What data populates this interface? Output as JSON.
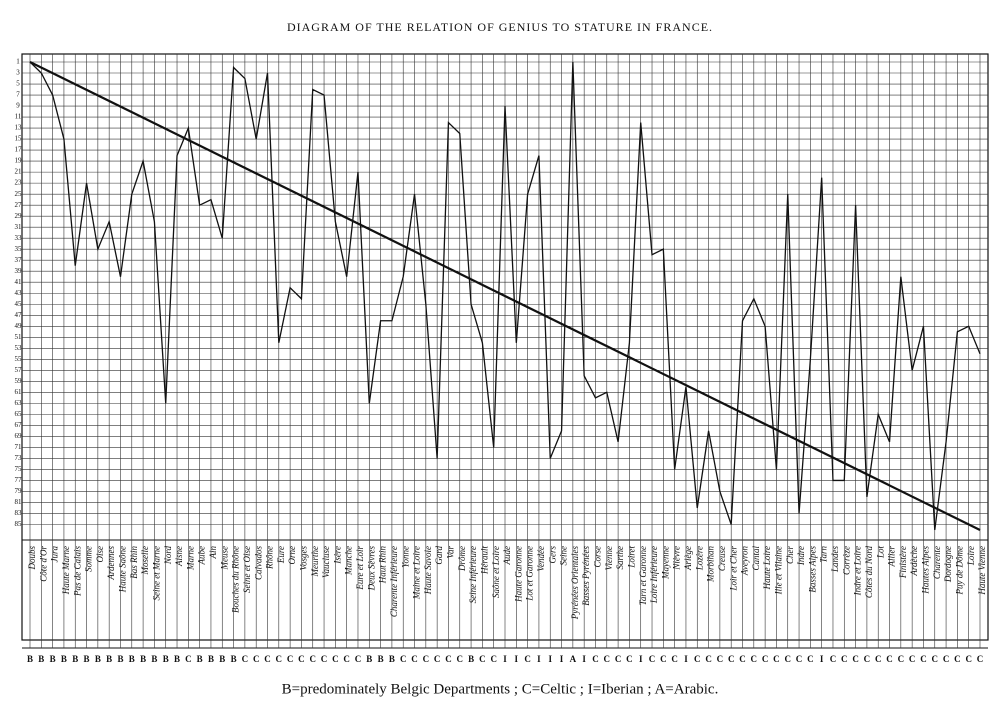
{
  "chart_data": {
    "type": "line",
    "title": "DIAGRAM OF THE RELATION OF GENIUS TO STATURE IN FRANCE.",
    "caption": "B=predominately Belgic Departments ; C=Celtic ; I=Iberian ; A=Arabic.",
    "y_inverted": true,
    "grid": true,
    "color": "#111111",
    "ylim": [
      1,
      86
    ],
    "yticks": [
      1,
      3,
      5,
      7,
      9,
      11,
      13,
      15,
      17,
      19,
      21,
      23,
      25,
      27,
      29,
      31,
      33,
      35,
      37,
      39,
      41,
      43,
      45,
      47,
      49,
      51,
      53,
      55,
      57,
      59,
      61,
      63,
      65,
      67,
      69,
      71,
      73,
      75,
      77,
      79,
      81,
      83,
      85
    ],
    "categories": [
      "Doubs",
      "Côte d'Or",
      "Jura",
      "Haute Marne",
      "Pas de Calais",
      "Somme",
      "Oise",
      "Ardennes",
      "Haute Saône",
      "Bas Rhin",
      "Moselle",
      "Seine et Marne",
      "Nord",
      "Aisne",
      "Marne",
      "Aube",
      "Ain",
      "Meuse",
      "Bouches du Rhône",
      "Seine et Oise",
      "Calvados",
      "Rhône",
      "Eure",
      "Orne",
      "Vosges",
      "Meurthe",
      "Vaucluse",
      "Isère",
      "Manche",
      "Eure et Loir",
      "Deux Sèvres",
      "Haut Rhin",
      "Charente Inférieure",
      "Yonne",
      "Maine et Loire",
      "Haute Savoie",
      "Gard",
      "Var",
      "Drôme",
      "Seine Inférieure",
      "Hérault",
      "Saône et Loire",
      "Aude",
      "Haute Garonne",
      "Lot et Garonne",
      "Vendée",
      "Gers",
      "Seine",
      "Pyrénées Orientales",
      "Basses Pyrénées",
      "Corse",
      "Vienne",
      "Sarthe",
      "Loiret",
      "Tarn et Garonne",
      "Loire Inférieure",
      "Mayenne",
      "Nièvre",
      "Ariège",
      "Lozère",
      "Morbihan",
      "Creuse",
      "Loir et Cher",
      "Aveyron",
      "Cantal",
      "Haute Loire",
      "Ille et Vilaine",
      "Cher",
      "Indre",
      "Basses Alpes",
      "Tarn",
      "Landes",
      "Corrèze",
      "Indre et Loire",
      "Côtes du Nord",
      "Lot",
      "Allier",
      "Finistère",
      "Ardèche",
      "Hautes Alpes",
      "Charente",
      "Dordogne",
      "Puy de Dôme",
      "Loire",
      "Haute Vienne"
    ],
    "groups": [
      "B",
      "B",
      "B",
      "B",
      "B",
      "B",
      "B",
      "B",
      "B",
      "B",
      "B",
      "B",
      "B",
      "B",
      "C",
      "B",
      "B",
      "B",
      "B",
      "C",
      "C",
      "C",
      "C",
      "C",
      "C",
      "C",
      "C",
      "C",
      "C",
      "C",
      "B",
      "B",
      "B",
      "C",
      "C",
      "C",
      "C",
      "C",
      "C",
      "B",
      "C",
      "C",
      "I",
      "I",
      "C",
      "I",
      "I",
      "I",
      "A",
      "I",
      "C",
      "C",
      "C",
      "C",
      "I",
      "C",
      "C",
      "C",
      "I",
      "C",
      "C",
      "C",
      "C",
      "C",
      "C",
      "C",
      "C",
      "C",
      "C",
      "C",
      "I",
      "C",
      "C",
      "C",
      "C",
      "C",
      "C",
      "C",
      "C",
      "C",
      "C",
      "C",
      "C",
      "C",
      "C"
    ],
    "values": [
      1,
      3,
      7,
      15,
      38,
      23,
      35,
      30,
      40,
      25,
      19,
      30,
      63,
      18,
      13,
      27,
      26,
      33,
      2,
      4,
      15,
      3,
      52,
      42,
      44,
      6,
      7,
      30,
      40,
      21,
      63,
      48,
      48,
      40,
      25,
      45,
      73,
      12,
      14,
      45,
      52,
      71,
      9,
      52,
      25,
      18,
      73,
      68,
      1,
      58,
      62,
      61,
      70,
      52,
      12,
      36,
      35,
      75,
      60,
      82,
      68,
      79,
      85,
      48,
      44,
      49,
      75,
      25,
      83,
      55,
      22,
      77,
      77,
      27,
      80,
      65,
      70,
      40,
      57,
      49,
      86,
      70,
      50,
      49,
      54
    ],
    "reference_line": [
      1,
      86
    ]
  }
}
